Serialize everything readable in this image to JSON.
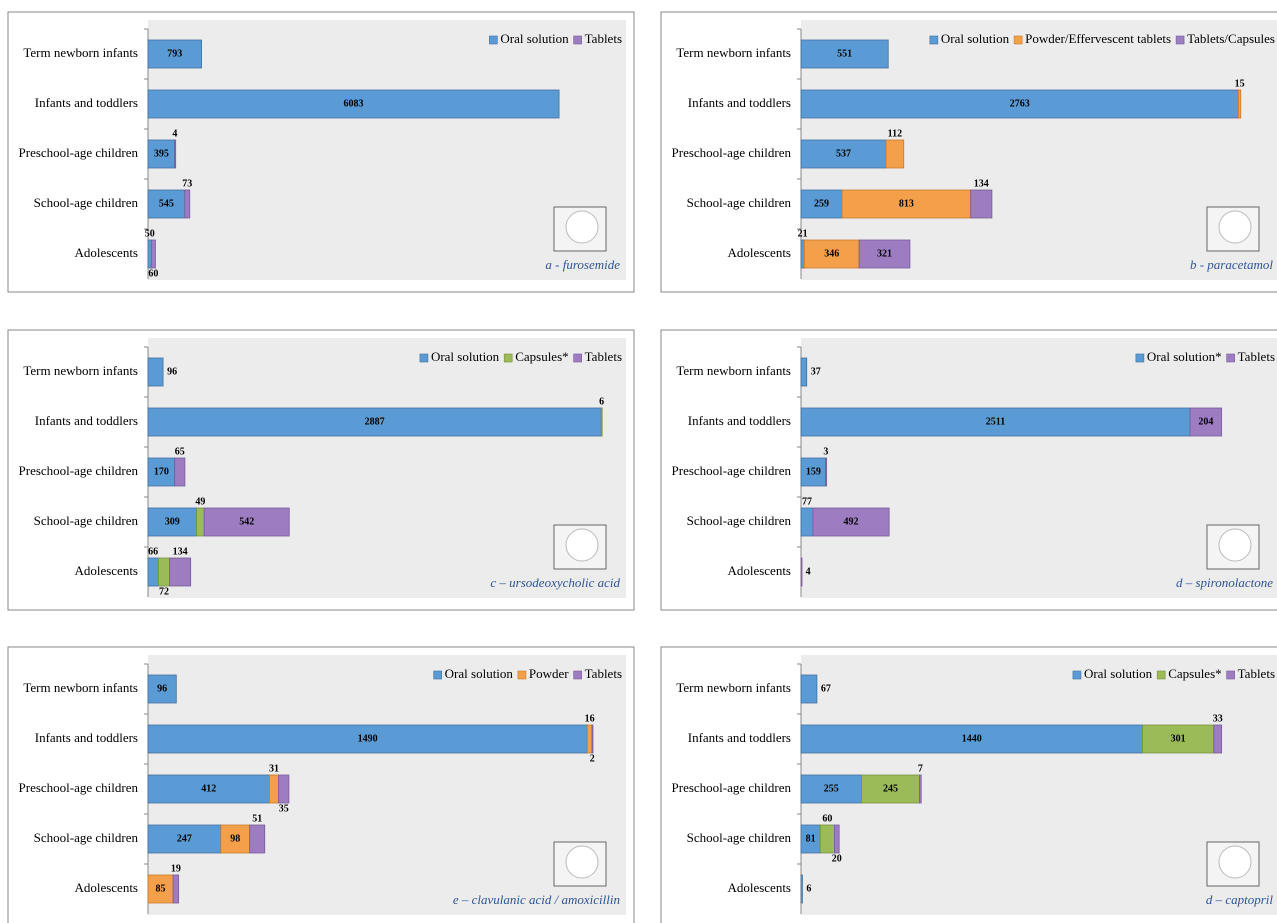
{
  "chart_data": [
    {
      "type": "bar",
      "caption": "a - furosemide",
      "categories": [
        "Term newborn infants",
        "Infants and toddlers",
        "Preschool-age children",
        "School-age children",
        "Adolescents"
      ],
      "series": [
        {
          "name": "Oral solution",
          "color": "#5b9bd5",
          "values": [
            793,
            6083,
            395,
            545,
            50
          ]
        },
        {
          "name": "Tablets",
          "color": "#9e7cc1",
          "values": [
            null,
            null,
            4,
            73,
            60
          ]
        }
      ]
    },
    {
      "type": "bar",
      "caption": "b - paracetamol",
      "categories": [
        "Term newborn infants",
        "Infants and toddlers",
        "Preschool-age children",
        "School-age children",
        "Adolescents"
      ],
      "series": [
        {
          "name": "Oral solution",
          "color": "#5b9bd5",
          "values": [
            551,
            2763,
            537,
            259,
            21
          ]
        },
        {
          "name": "Powder/Effervescent tablets",
          "color": "#f4a04a",
          "values": [
            null,
            15,
            112,
            813,
            346
          ]
        },
        {
          "name": "Tablets/Capsules",
          "color": "#9e7cc1",
          "values": [
            null,
            null,
            null,
            134,
            321
          ]
        }
      ]
    },
    {
      "type": "bar",
      "caption": "c – ursodeoxycholic acid",
      "categories": [
        "Term newborn infants",
        "Infants and toddlers",
        "Preschool-age children",
        "School-age children",
        "Adolescents"
      ],
      "series": [
        {
          "name": "Oral solution",
          "color": "#5b9bd5",
          "values": [
            96,
            2887,
            170,
            309,
            66
          ]
        },
        {
          "name": "Capsules*",
          "color": "#9bbb59",
          "values": [
            null,
            6,
            null,
            49,
            72
          ]
        },
        {
          "name": "Tablets",
          "color": "#9e7cc1",
          "values": [
            null,
            null,
            65,
            542,
            134
          ]
        }
      ]
    },
    {
      "type": "bar",
      "caption": "d – spironolactone",
      "categories": [
        "Term newborn infants",
        "Infants and toddlers",
        "Preschool-age children",
        "School-age children",
        "Adolescents"
      ],
      "series": [
        {
          "name": "Oral solution*",
          "color": "#5b9bd5",
          "values": [
            37,
            2511,
            159,
            77,
            null
          ]
        },
        {
          "name": "Tablets",
          "color": "#9e7cc1",
          "values": [
            null,
            204,
            3,
            492,
            4
          ]
        }
      ]
    },
    {
      "type": "bar",
      "caption": "e – clavulanic acid / amoxicillin",
      "categories": [
        "Term newborn infants",
        "Infants and toddlers",
        "Preschool-age children",
        "School-age children",
        "Adolescents"
      ],
      "series": [
        {
          "name": "Oral solution",
          "color": "#5b9bd5",
          "values": [
            96,
            1490,
            412,
            247,
            null
          ]
        },
        {
          "name": "Powder",
          "color": "#f4a04a",
          "values": [
            null,
            16,
            31,
            98,
            85
          ]
        },
        {
          "name": "Tablets",
          "color": "#9e7cc1",
          "values": [
            null,
            2,
            35,
            51,
            19
          ]
        }
      ]
    },
    {
      "type": "bar",
      "caption": "d – captopril",
      "categories": [
        "Term newborn infants",
        "Infants and toddlers",
        "Preschool-age children",
        "School-age children",
        "Adolescents"
      ],
      "series": [
        {
          "name": "Oral solution",
          "color": "#5b9bd5",
          "values": [
            67,
            1440,
            255,
            81,
            6
          ]
        },
        {
          "name": "Capsules*",
          "color": "#9bbb59",
          "values": [
            null,
            301,
            245,
            60,
            null
          ]
        },
        {
          "name": "Tablets",
          "color": "#9e7cc1",
          "values": [
            null,
            33,
            7,
            20,
            null
          ]
        }
      ]
    }
  ]
}
